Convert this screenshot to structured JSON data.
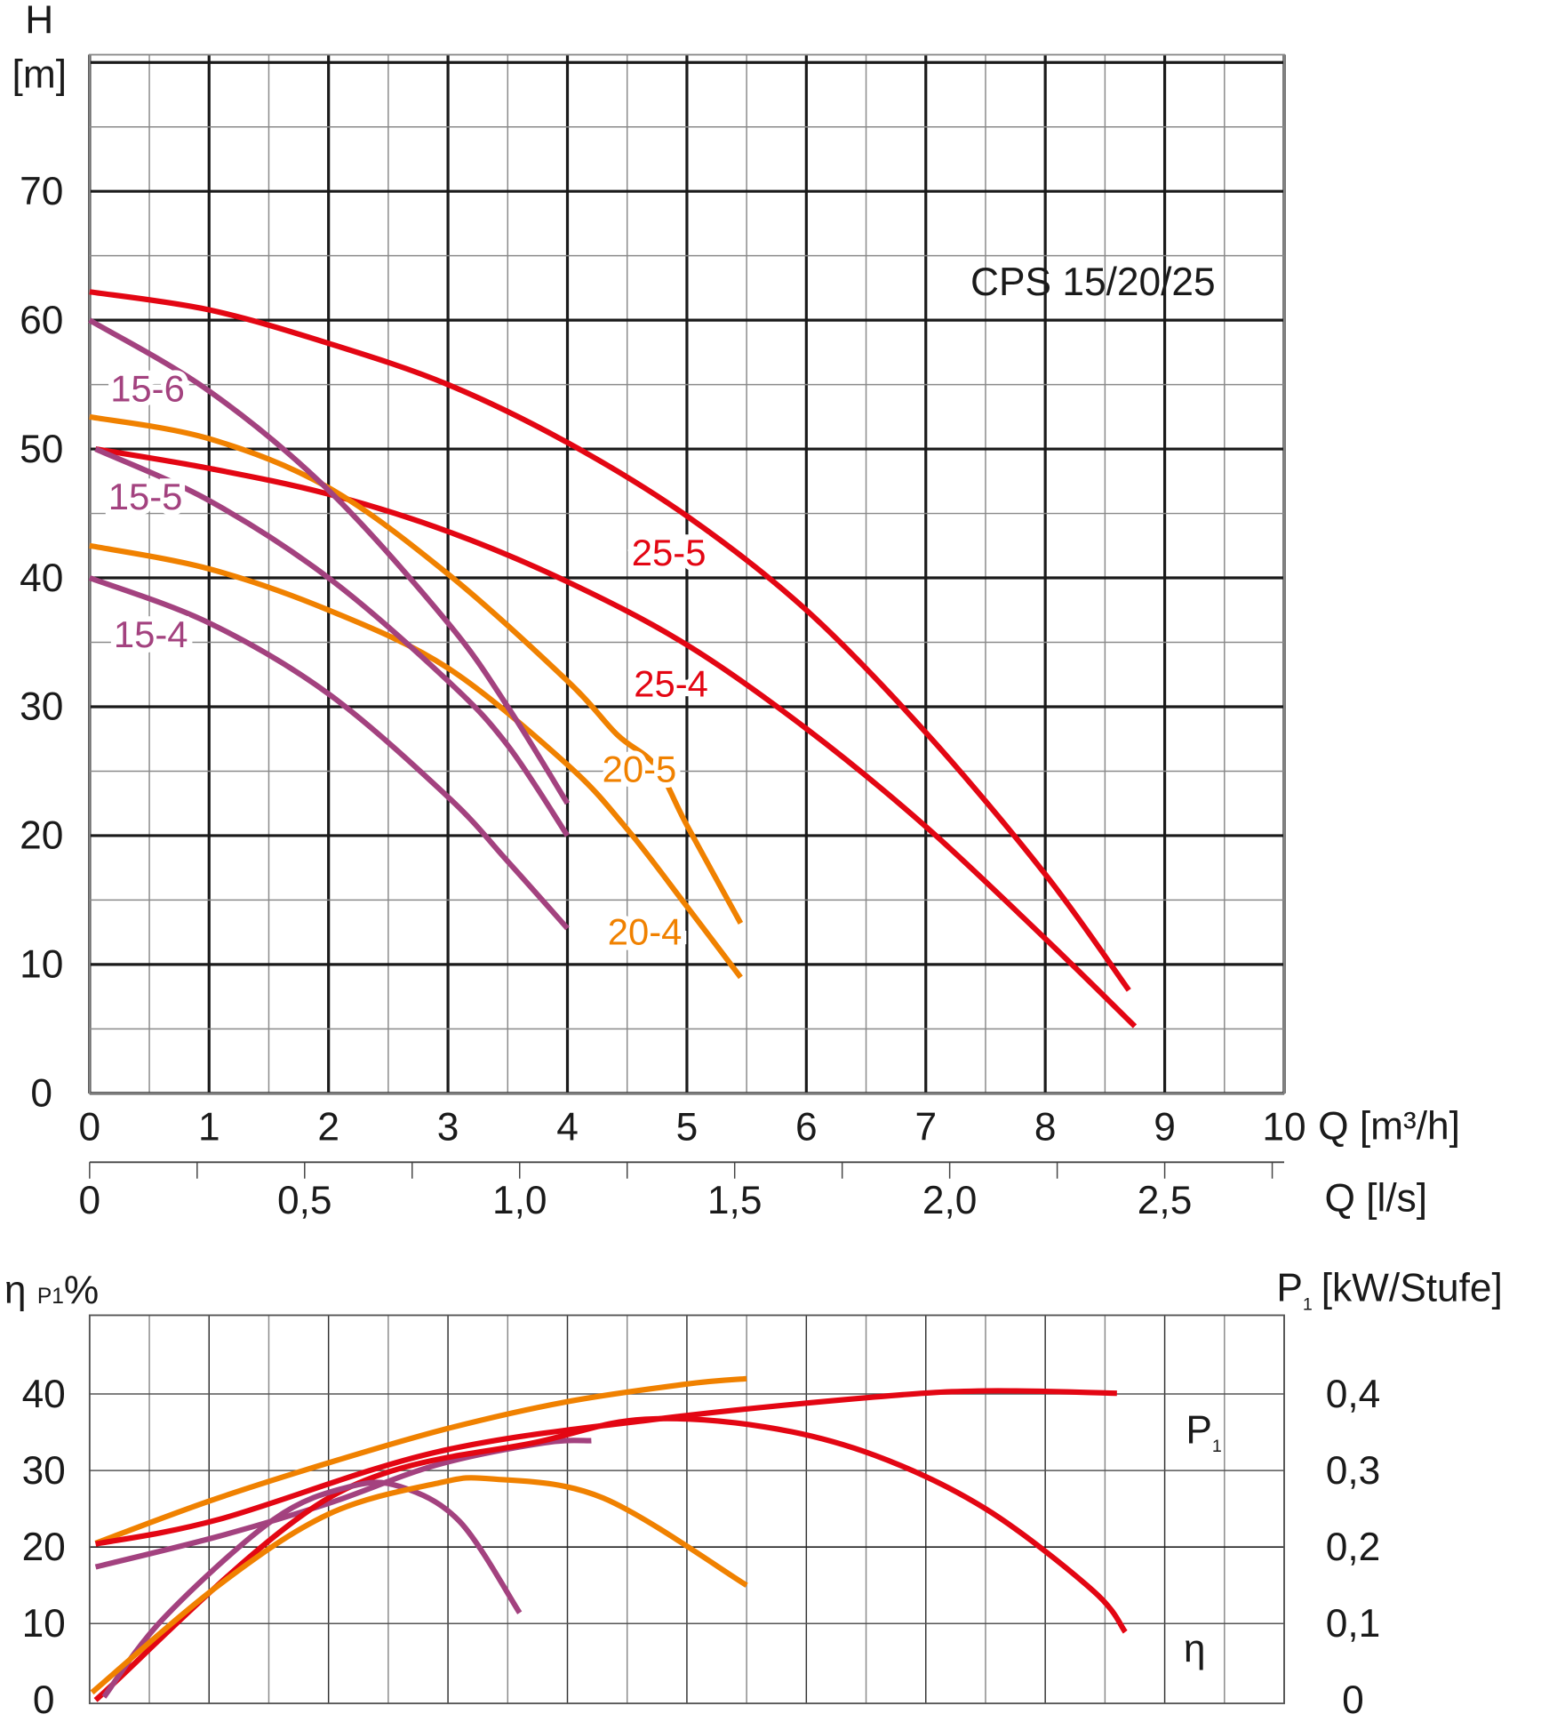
{
  "colors": {
    "red": "#e30613",
    "orange": "#f08100",
    "purple": "#a3427f",
    "grid_dark": "#1a1a1a",
    "grid_light": "#8a8a8a"
  },
  "chart_data": [
    {
      "type": "line",
      "title": "CPS 15/20/25",
      "xlabel": "Q [m³/h]",
      "xlabel_secondary": "Q [l/s]",
      "ylabel_top": "H",
      "ylabel_unit": "[m]",
      "xlim": [
        0,
        10
      ],
      "ylim": [
        0,
        80
      ],
      "grid": true,
      "x_ticks": [
        "0",
        "1",
        "2",
        "3",
        "4",
        "5",
        "6",
        "7",
        "8",
        "9",
        "10"
      ],
      "x_ticks_values": [
        0,
        1,
        2,
        3,
        4,
        5,
        6,
        7,
        8,
        9,
        10
      ],
      "x2_ticks": [
        "0",
        "0,5",
        "1,0",
        "1,5",
        "2,0",
        "2,5"
      ],
      "x2_ticks_values": [
        0,
        0.5,
        1.0,
        1.5,
        2.0,
        2.5
      ],
      "y_ticks": [
        "0",
        "10",
        "20",
        "30",
        "40",
        "50",
        "60",
        "70"
      ],
      "y_ticks_values": [
        0,
        10,
        20,
        30,
        40,
        50,
        60,
        70
      ],
      "series": [
        {
          "name": "25-5",
          "color": "red",
          "x": [
            0,
            1,
            2,
            3,
            4,
            5,
            6,
            7,
            8,
            8.7
          ],
          "y": [
            62.2,
            60.8,
            58.2,
            55,
            50.5,
            44.8,
            37.5,
            28,
            17,
            8
          ]
        },
        {
          "name": "25-4",
          "color": "red",
          "x": [
            0.05,
            1,
            2,
            3,
            4,
            5,
            6,
            7,
            8,
            8.75
          ],
          "y": [
            50,
            48.5,
            46.5,
            43.6,
            39.7,
            34.8,
            28.3,
            20.7,
            12,
            5.2
          ]
        },
        {
          "name": "20-5",
          "color": "orange",
          "x": [
            0,
            1,
            2,
            3,
            4,
            4.42,
            4.74,
            5,
            5.45
          ],
          "y": [
            52.5,
            50.8,
            47,
            40.3,
            32,
            27.8,
            25.4,
            20.8,
            13.2
          ]
        },
        {
          "name": "20-4",
          "color": "orange",
          "x": [
            0,
            1,
            2,
            3,
            4,
            4.5,
            5,
            5.45
          ],
          "y": [
            42.5,
            40.7,
            37.5,
            33,
            25.5,
            20.5,
            14.5,
            9
          ]
        },
        {
          "name": "15-6",
          "color": "purple",
          "x": [
            0,
            1,
            2,
            3,
            3.5,
            4
          ],
          "y": [
            60,
            54.5,
            46.8,
            36.5,
            30,
            22.5
          ]
        },
        {
          "name": "15-5",
          "color": "purple",
          "x": [
            0.05,
            1,
            2,
            3,
            3.5,
            4
          ],
          "y": [
            50,
            46,
            40,
            32,
            27,
            20
          ]
        },
        {
          "name": "15-4",
          "color": "purple",
          "x": [
            0,
            1,
            2,
            3,
            3.5,
            4
          ],
          "y": [
            40,
            36.5,
            31,
            23,
            18,
            12.8
          ]
        }
      ]
    },
    {
      "type": "line",
      "ylabel_left": "η",
      "ylabel_left_sub": "P1",
      "ylabel_left_unit": "%",
      "ylabel_right": "P",
      "ylabel_right_sub": "1",
      "ylabel_right_unit": "[kW/Stufe]",
      "xlim": [
        0,
        10
      ],
      "ylim": [
        0,
        50
      ],
      "ylim_right": [
        0,
        0.5
      ],
      "grid": true,
      "y_ticks": [
        "0",
        "10",
        "20",
        "30",
        "40"
      ],
      "y_ticks_values": [
        0,
        10,
        20,
        30,
        40
      ],
      "y2_ticks": [
        "0",
        "0,1",
        "0,2",
        "0,3",
        "0,4"
      ],
      "y2_ticks_values": [
        0,
        0.1,
        0.2,
        0.3,
        0.4
      ],
      "annotations": {
        "p1": "P",
        "p1_sub": "1",
        "eta": "η"
      },
      "series": [
        {
          "color": "orange",
          "kind": "P1",
          "x": [
            0.05,
            1,
            2,
            3,
            4,
            5,
            5.5
          ],
          "y": [
            20.5,
            26,
            31,
            35.5,
            39,
            41.3,
            42
          ]
        },
        {
          "color": "red",
          "kind": "P1",
          "x": [
            0.05,
            1.08,
            2.9,
            4.74,
            6.57,
            7.5,
            8.6
          ],
          "y": [
            20.4,
            23.6,
            32.4,
            36.7,
            39.6,
            40.4,
            40.1
          ]
        },
        {
          "color": "purple",
          "kind": "P1",
          "x": [
            0.05,
            1.08,
            2,
            2.9,
            3.8,
            4.2
          ],
          "y": [
            17.4,
            21.4,
            25.7,
            30.7,
            33.6,
            33.9
          ]
        },
        {
          "color": "red",
          "kind": "η",
          "x": [
            0.05,
            2,
            3.8,
            4.65,
            5.65,
            6.57,
            7.5,
            8.4,
            8.67
          ],
          "y": [
            0,
            26.4,
            33.9,
            36.7,
            35.7,
            32,
            25,
            14.3,
            8.9
          ]
        },
        {
          "color": "purple",
          "kind": "η",
          "x": [
            0.12,
            0.62,
            1.54,
            2.18,
            2.6,
            3.1,
            3.6
          ],
          "y": [
            0.4,
            10.7,
            23.6,
            27.9,
            27.9,
            23.3,
            11.4
          ]
        },
        {
          "color": "orange",
          "kind": "η",
          "x": [
            0.02,
            1.08,
            2,
            2.9,
            3.37,
            4.3,
            5.5
          ],
          "y": [
            1,
            15,
            24.3,
            28.3,
            28.9,
            26.4,
            15
          ]
        }
      ]
    }
  ]
}
